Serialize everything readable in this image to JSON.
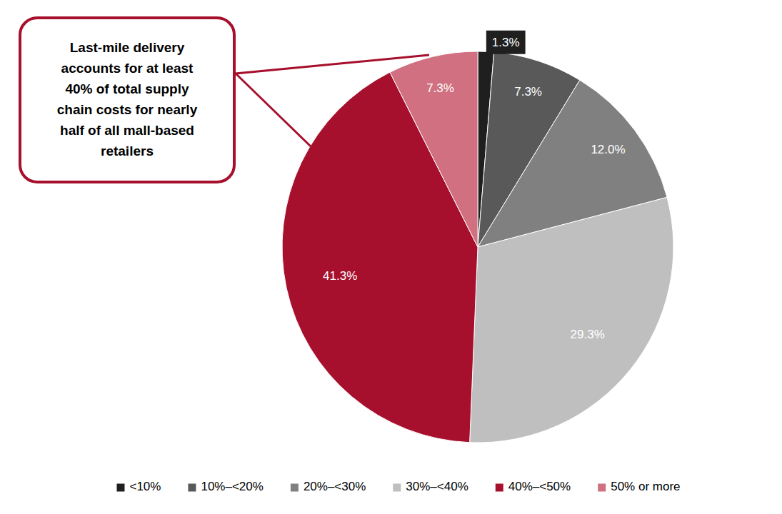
{
  "chart_data": {
    "type": "pie",
    "categories": [
      "<10%",
      "10%–<20%",
      "20%–<30%",
      "30%–<40%",
      "40%–<50%",
      "50% or more"
    ],
    "values": [
      1.3,
      7.3,
      12.0,
      29.3,
      41.3,
      7.3
    ],
    "value_labels": [
      "1.3%",
      "7.3%",
      "12.0%",
      "29.3%",
      "41.3%",
      "7.3%"
    ],
    "colors": [
      "#1f1f1f",
      "#595959",
      "#808080",
      "#bfbfbf",
      "#a6102c",
      "#d07080"
    ],
    "annotation": [
      "Last-mile delivery",
      "accounts for at least",
      "40% of total supply",
      "chain costs for nearly",
      "half of all mall-based",
      "retailers"
    ],
    "data_labels": true,
    "legend": "bottom"
  }
}
